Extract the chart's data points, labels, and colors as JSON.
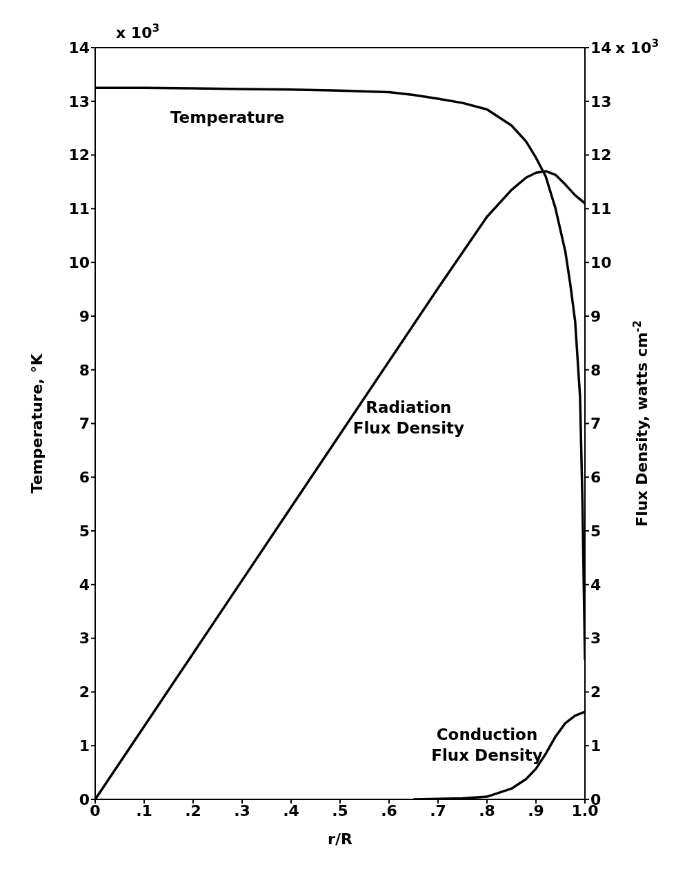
{
  "chart_data": {
    "type": "line",
    "xlabel": "r/R",
    "ylabel": "Temperature, °K",
    "y2label": "Flux Density, watts cm$^{-2}$",
    "annotations": [
      "x 10$^{3}$",
      "x 10$^{3}$"
    ],
    "xlim": [
      0,
      1
    ],
    "xticks": [
      {
        "value": 0,
        "label": "0"
      },
      {
        "value": 0.1,
        "label": ".1"
      },
      {
        "value": 0.2,
        "label": ".2"
      },
      {
        "value": 0.3,
        "label": ".3"
      },
      {
        "value": 0.4,
        "label": ".4"
      },
      {
        "value": 0.5,
        "label": ".5"
      },
      {
        "value": 0.6,
        "label": ".6"
      },
      {
        "value": 0.7,
        "label": ".7"
      },
      {
        "value": 0.8,
        "label": ".8"
      },
      {
        "value": 0.9,
        "label": ".9"
      },
      {
        "value": 1,
        "label": "1.0"
      }
    ],
    "ylim": [
      0,
      14
    ],
    "yticks": [
      0,
      1,
      2,
      3,
      4,
      5,
      6,
      7,
      8,
      9,
      10,
      11,
      12,
      13,
      14
    ],
    "y2lim": [
      0,
      14
    ],
    "y2ticks": [
      0,
      1,
      2,
      3,
      4,
      5,
      6,
      7,
      8,
      9,
      10,
      11,
      12,
      13,
      14
    ],
    "marker": "none",
    "line_style": "solid",
    "series": [
      {
        "name": "Temperature",
        "color": "#000000",
        "x": [
          0,
          0.1,
          0.2,
          0.3,
          0.4,
          0.5,
          0.6,
          0.65,
          0.7,
          0.75,
          0.8,
          0.85,
          0.88,
          0.9,
          0.92,
          0.94,
          0.96,
          0.97,
          0.98,
          0.99,
          0.995,
          1.0
        ],
        "values": [
          13.25,
          13.25,
          13.24,
          13.23,
          13.22,
          13.2,
          13.17,
          13.12,
          13.05,
          12.97,
          12.85,
          12.55,
          12.25,
          11.95,
          11.6,
          11,
          10.2,
          9.6,
          8.9,
          7.5,
          5.5,
          2.6
        ]
      },
      {
        "name": "Radiation Flux Density",
        "color": "#000000",
        "x": [
          0,
          0.1,
          0.2,
          0.3,
          0.4,
          0.5,
          0.6,
          0.7,
          0.8,
          0.85,
          0.88,
          0.9,
          0.92,
          0.94,
          0.96,
          0.98,
          1.0
        ],
        "values": [
          0,
          1.36,
          2.72,
          4.08,
          5.44,
          6.8,
          8.16,
          9.52,
          10.85,
          11.35,
          11.58,
          11.67,
          11.7,
          11.63,
          11.45,
          11.25,
          11.1
        ]
      },
      {
        "name": "Conduction Flux Density",
        "color": "#000000",
        "x": [
          0.65,
          0.7,
          0.75,
          0.8,
          0.85,
          0.88,
          0.9,
          0.92,
          0.94,
          0.96,
          0.98,
          1.0
        ],
        "values": [
          0,
          0.01,
          0.02,
          0.05,
          0.2,
          0.38,
          0.57,
          0.85,
          1.17,
          1.42,
          1.56,
          1.63
        ]
      }
    ]
  }
}
